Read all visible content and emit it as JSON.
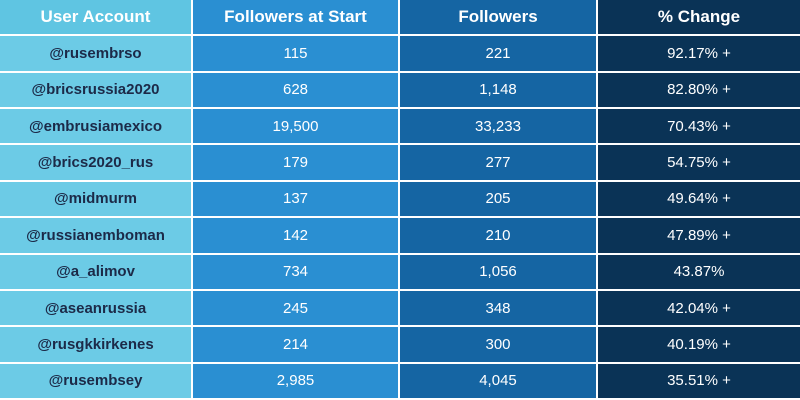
{
  "chart_data": {
    "type": "table",
    "columns": [
      "User Account",
      "Followers at Start",
      "Followers",
      "% Change"
    ],
    "rows": [
      [
        "@rusembrso",
        "115",
        "221",
        "92.17% +"
      ],
      [
        "@bricsrussia2020",
        "628",
        "1,148",
        "82.80% +"
      ],
      [
        "@embrusiamexico",
        "19,500",
        "33,233",
        "70.43% +"
      ],
      [
        "@brics2020_rus",
        "179",
        "277",
        "54.75% +"
      ],
      [
        "@midmurm",
        "137",
        "205",
        "49.64% +"
      ],
      [
        "@russianemboman",
        "142",
        "210",
        "47.89% +"
      ],
      [
        "@a_alimov",
        "734",
        "1,056",
        "43.87%"
      ],
      [
        "@aseanrussia",
        "245",
        "348",
        "42.04% +"
      ],
      [
        "@rusgkkirkenes",
        "214",
        "300",
        "40.19% +"
      ],
      [
        "@rusembsey",
        "2,985",
        "4,045",
        "35.51% +"
      ]
    ],
    "colors": {
      "col1": "#6ccbe6",
      "col2": "#2a8fd2",
      "col3": "#1565a3",
      "col4": "#0a3356",
      "account_text": "#1c2a48"
    }
  }
}
